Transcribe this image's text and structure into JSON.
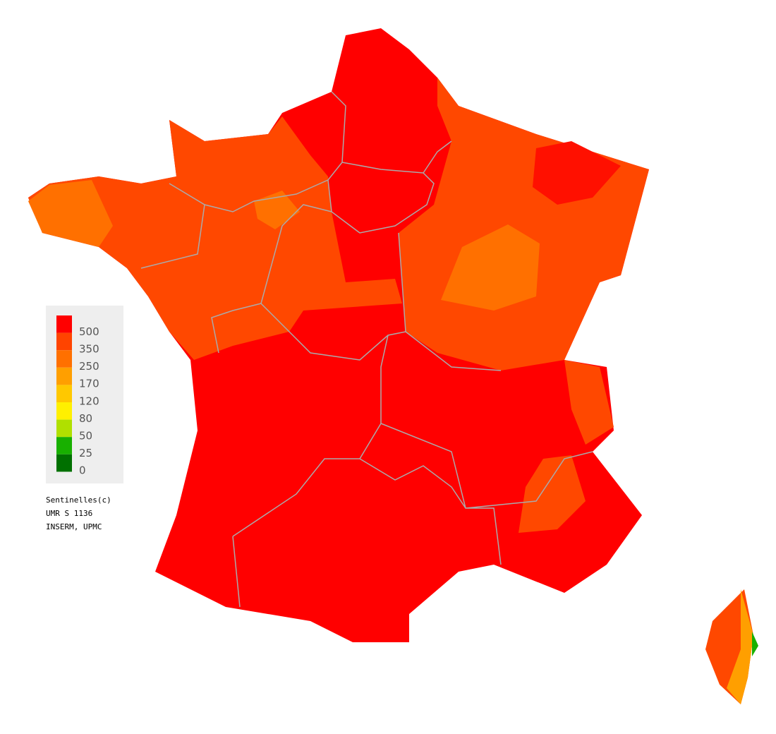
{
  "legend": {
    "items": [
      {
        "label": "500",
        "color": "#ff0000"
      },
      {
        "label": "350",
        "color": "#ff4400"
      },
      {
        "label": "250",
        "color": "#ff7000"
      },
      {
        "label": "170",
        "color": "#ff9f00"
      },
      {
        "label": "120",
        "color": "#ffc800"
      },
      {
        "label": "80",
        "color": "#fff000"
      },
      {
        "label": "50",
        "color": "#b0e000"
      },
      {
        "label": "25",
        "color": "#18b000"
      },
      {
        "label": "0",
        "color": "#007000"
      }
    ]
  },
  "credit": [
    "Sentinelles(c)",
    "UMR S 1136",
    "INSERM, UPMC"
  ]
}
